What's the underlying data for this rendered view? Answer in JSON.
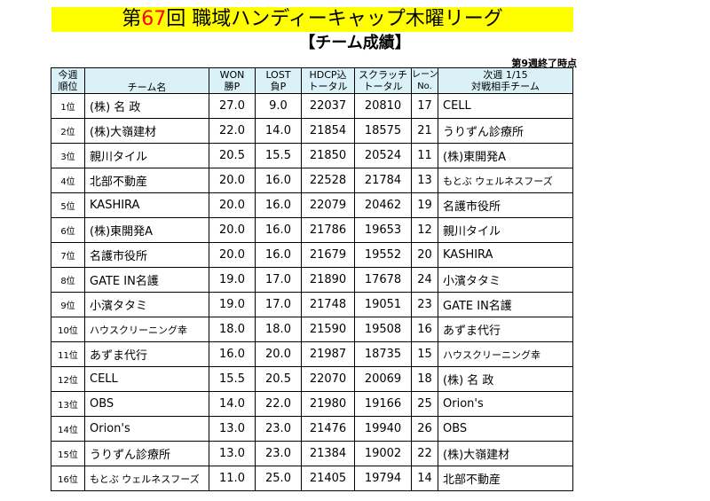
{
  "title": {
    "prefix": "第",
    "number": "67",
    "suffix": "回 職域ハンディーキャップ木曜リーグ"
  },
  "subtitle": "【チーム成績】",
  "as_of": "第9週終了時点",
  "headers": {
    "rank": [
      "今週",
      "順位"
    ],
    "team": "チーム名",
    "won": [
      "WON",
      "勝P"
    ],
    "lost": [
      "LOST",
      "負P"
    ],
    "hdcp": [
      "HDCP込",
      "トータル"
    ],
    "scratch": [
      "スクラッチ",
      "トータル"
    ],
    "lane": [
      "レーン",
      "No."
    ],
    "opp": [
      "次週 1/15",
      "対戦相手チーム"
    ]
  },
  "rows": [
    {
      "rank": "1位",
      "team": "(株) 名 政",
      "won": "27.0",
      "lost": "9.0",
      "hdcp": "22037",
      "scratch": "20810",
      "lane": "17",
      "opp": "CELL"
    },
    {
      "rank": "2位",
      "team": "(株)大嶺建材",
      "won": "22.0",
      "lost": "14.0",
      "hdcp": "21854",
      "scratch": "18575",
      "lane": "21",
      "opp": "うりずん診療所"
    },
    {
      "rank": "3位",
      "team": "親川タイル",
      "won": "20.5",
      "lost": "15.5",
      "hdcp": "21850",
      "scratch": "20524",
      "lane": "11",
      "opp": "(株)東開発A"
    },
    {
      "rank": "4位",
      "team": "北部不動産",
      "won": "20.0",
      "lost": "16.0",
      "hdcp": "22528",
      "scratch": "21784",
      "lane": "13",
      "opp": "もとぶ ウェルネスフーズ"
    },
    {
      "rank": "5位",
      "team": "KASHIRA",
      "won": "20.0",
      "lost": "16.0",
      "hdcp": "22079",
      "scratch": "20462",
      "lane": "19",
      "opp": "名護市役所"
    },
    {
      "rank": "6位",
      "team": "(株)東開発A",
      "won": "20.0",
      "lost": "16.0",
      "hdcp": "21786",
      "scratch": "19653",
      "lane": "12",
      "opp": "親川タイル"
    },
    {
      "rank": "7位",
      "team": "名護市役所",
      "won": "20.0",
      "lost": "16.0",
      "hdcp": "21679",
      "scratch": "19552",
      "lane": "20",
      "opp": "KASHIRA"
    },
    {
      "rank": "8位",
      "team": "GATE IN名護",
      "won": "19.0",
      "lost": "17.0",
      "hdcp": "21890",
      "scratch": "17678",
      "lane": "24",
      "opp": "小濱タタミ"
    },
    {
      "rank": "9位",
      "team": "小濱タタミ",
      "won": "19.0",
      "lost": "17.0",
      "hdcp": "21748",
      "scratch": "19051",
      "lane": "23",
      "opp": "GATE IN名護"
    },
    {
      "rank": "10位",
      "team": "ハウスクリーニング幸",
      "won": "18.0",
      "lost": "18.0",
      "hdcp": "21590",
      "scratch": "19508",
      "lane": "16",
      "opp": "あずま代行"
    },
    {
      "rank": "11位",
      "team": "あずま代行",
      "won": "16.0",
      "lost": "20.0",
      "hdcp": "21987",
      "scratch": "18735",
      "lane": "15",
      "opp": "ハウスクリーニング幸"
    },
    {
      "rank": "12位",
      "team": "CELL",
      "won": "15.5",
      "lost": "20.5",
      "hdcp": "22070",
      "scratch": "20069",
      "lane": "18",
      "opp": "(株) 名 政"
    },
    {
      "rank": "13位",
      "team": "OBS",
      "won": "14.0",
      "lost": "22.0",
      "hdcp": "21980",
      "scratch": "19166",
      "lane": "25",
      "opp": "Orion's"
    },
    {
      "rank": "14位",
      "team": "Orion's",
      "won": "13.0",
      "lost": "23.0",
      "hdcp": "21476",
      "scratch": "19940",
      "lane": "26",
      "opp": "OBS"
    },
    {
      "rank": "15位",
      "team": "うりずん診療所",
      "won": "13.0",
      "lost": "23.0",
      "hdcp": "21384",
      "scratch": "19002",
      "lane": "22",
      "opp": "(株)大嶺建材"
    },
    {
      "rank": "16位",
      "team": "もとぶ ウェルネスフーズ",
      "won": "11.0",
      "lost": "25.0",
      "hdcp": "21405",
      "scratch": "19794",
      "lane": "14",
      "opp": "北部不動産"
    }
  ]
}
